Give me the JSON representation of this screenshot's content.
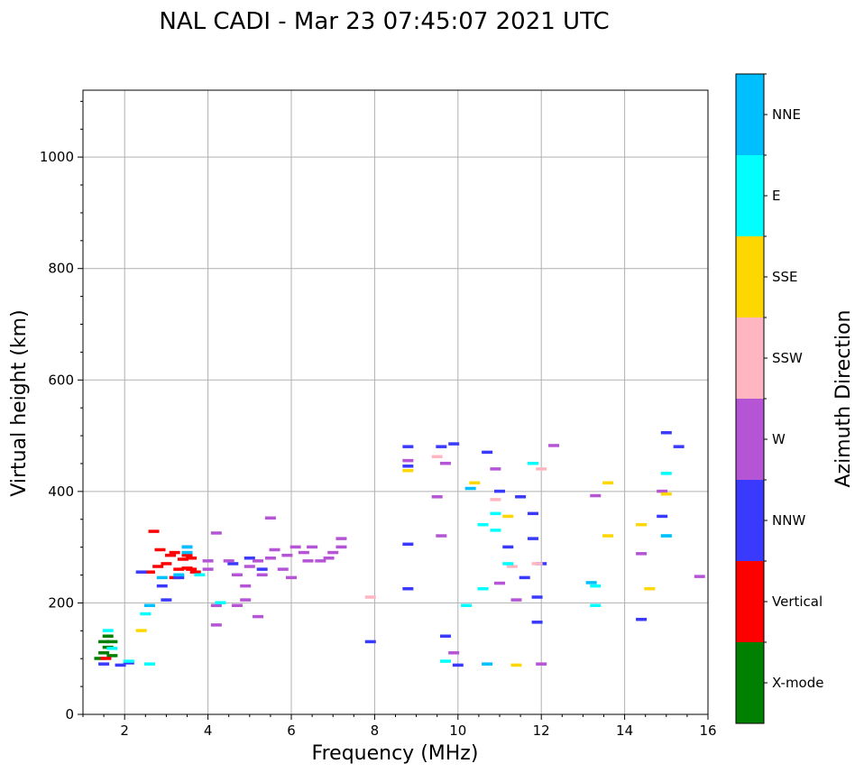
{
  "chart_data": {
    "type": "scatter",
    "title": "NAL CADI - Mar 23 07:45:07 2021 UTC",
    "xlabel": "Frequency (MHz)",
    "ylabel": "Virtual height (km)",
    "xlim": [
      1,
      16
    ],
    "ylim": [
      0,
      1120
    ],
    "xticks": [
      2,
      4,
      6,
      8,
      10,
      12,
      14,
      16
    ],
    "yticks": [
      0,
      200,
      400,
      600,
      800,
      1000
    ],
    "grid": true,
    "colorbar": {
      "label": "Azimuth Direction",
      "categories": [
        {
          "name": "X-mode",
          "color": "#008000"
        },
        {
          "name": "Vertical",
          "color": "#ff0000"
        },
        {
          "name": "NNW",
          "color": "#3a3aff"
        },
        {
          "name": "W",
          "color": "#b555d6"
        },
        {
          "name": "SSW",
          "color": "#ffb6c1"
        },
        {
          "name": "SSE",
          "color": "#ffd700"
        },
        {
          "name": "E",
          "color": "#00ffff"
        },
        {
          "name": "NNE",
          "color": "#00bfff"
        }
      ]
    },
    "series": [
      {
        "name": "X-mode",
        "points": [
          [
            1.4,
            100
          ],
          [
            1.5,
            110
          ],
          [
            1.6,
            120
          ],
          [
            1.6,
            140
          ],
          [
            1.7,
            130
          ],
          [
            1.5,
            130
          ],
          [
            1.7,
            105
          ]
        ]
      },
      {
        "name": "Vertical",
        "points": [
          [
            1.55,
            100
          ],
          [
            2.6,
            255
          ],
          [
            2.8,
            265
          ],
          [
            3.0,
            270
          ],
          [
            3.1,
            285
          ],
          [
            3.3,
            260
          ],
          [
            3.5,
            262
          ],
          [
            3.6,
            260
          ],
          [
            3.7,
            255
          ],
          [
            3.2,
            290
          ],
          [
            3.5,
            285
          ],
          [
            2.85,
            295
          ],
          [
            2.7,
            328
          ],
          [
            3.2,
            245
          ],
          [
            3.4,
            278
          ],
          [
            3.6,
            280
          ]
        ]
      },
      {
        "name": "NNW",
        "points": [
          [
            1.5,
            90
          ],
          [
            1.9,
            88
          ],
          [
            2.1,
            92
          ],
          [
            2.4,
            255
          ],
          [
            2.9,
            230
          ],
          [
            3.0,
            205
          ],
          [
            3.3,
            245
          ],
          [
            3.5,
            300
          ],
          [
            4.6,
            270
          ],
          [
            5.0,
            280
          ],
          [
            5.3,
            260
          ],
          [
            8.8,
            480
          ],
          [
            9.6,
            480
          ],
          [
            9.9,
            485
          ],
          [
            10.7,
            470
          ],
          [
            11.2,
            300
          ],
          [
            11.5,
            390
          ],
          [
            11.8,
            360
          ],
          [
            11.8,
            315
          ],
          [
            12.0,
            270
          ],
          [
            14.4,
            170
          ],
          [
            14.9,
            355
          ],
          [
            15.3,
            480
          ],
          [
            15.0,
            505
          ],
          [
            8.8,
            305
          ],
          [
            8.8,
            225
          ],
          [
            9.7,
            140
          ],
          [
            7.9,
            130
          ],
          [
            10.0,
            88
          ],
          [
            11.0,
            400
          ],
          [
            11.6,
            245
          ],
          [
            11.9,
            165
          ],
          [
            11.9,
            210
          ],
          [
            8.8,
            445
          ]
        ]
      },
      {
        "name": "W",
        "points": [
          [
            4.2,
            325
          ],
          [
            4.0,
            275
          ],
          [
            4.0,
            260
          ],
          [
            4.2,
            195
          ],
          [
            4.2,
            160
          ],
          [
            4.5,
            275
          ],
          [
            4.7,
            250
          ],
          [
            4.9,
            230
          ],
          [
            5.0,
            265
          ],
          [
            5.2,
            275
          ],
          [
            5.3,
            250
          ],
          [
            5.5,
            280
          ],
          [
            5.6,
            295
          ],
          [
            5.8,
            260
          ],
          [
            5.9,
            285
          ],
          [
            6.0,
            245
          ],
          [
            6.1,
            300
          ],
          [
            6.3,
            290
          ],
          [
            6.4,
            275
          ],
          [
            6.5,
            300
          ],
          [
            6.7,
            275
          ],
          [
            6.9,
            280
          ],
          [
            7.0,
            290
          ],
          [
            7.2,
            300
          ],
          [
            7.2,
            315
          ],
          [
            5.5,
            352
          ],
          [
            4.9,
            205
          ],
          [
            5.2,
            175
          ],
          [
            4.7,
            195
          ],
          [
            8.8,
            455
          ],
          [
            9.6,
            320
          ],
          [
            9.7,
            450
          ],
          [
            11.0,
            235
          ],
          [
            13.3,
            392
          ],
          [
            14.4,
            288
          ],
          [
            14.9,
            400
          ],
          [
            15.8,
            247
          ],
          [
            9.9,
            110
          ],
          [
            12.0,
            90
          ],
          [
            10.9,
            440
          ],
          [
            11.4,
            205
          ],
          [
            9.5,
            390
          ],
          [
            12.3,
            482
          ]
        ]
      },
      {
        "name": "SSW",
        "points": [
          [
            10.9,
            385
          ],
          [
            11.3,
            265
          ],
          [
            11.9,
            270
          ],
          [
            7.9,
            210
          ],
          [
            12.0,
            440
          ],
          [
            9.5,
            462
          ]
        ]
      },
      {
        "name": "SSE",
        "points": [
          [
            8.8,
            437
          ],
          [
            10.4,
            415
          ],
          [
            11.2,
            355
          ],
          [
            11.4,
            88
          ],
          [
            14.4,
            340
          ],
          [
            14.6,
            225
          ],
          [
            15.0,
            395
          ],
          [
            13.6,
            320
          ],
          [
            13.6,
            415
          ],
          [
            2.4,
            150
          ]
        ]
      },
      {
        "name": "E",
        "points": [
          [
            2.1,
            95
          ],
          [
            2.6,
            90
          ],
          [
            3.8,
            250
          ],
          [
            4.3,
            200
          ],
          [
            9.7,
            95
          ],
          [
            10.2,
            195
          ],
          [
            10.6,
            225
          ],
          [
            10.6,
            340
          ],
          [
            10.9,
            330
          ],
          [
            10.9,
            360
          ],
          [
            11.2,
            270
          ],
          [
            11.8,
            450
          ],
          [
            13.3,
            230
          ],
          [
            13.3,
            195
          ],
          [
            15.0,
            432
          ],
          [
            15.0,
            320
          ],
          [
            1.6,
            150
          ],
          [
            1.7,
            118
          ],
          [
            2.5,
            180
          ]
        ]
      },
      {
        "name": "NNE",
        "points": [
          [
            3.5,
            300
          ],
          [
            3.5,
            290
          ],
          [
            3.3,
            250
          ],
          [
            2.9,
            245
          ],
          [
            2.6,
            195
          ],
          [
            10.3,
            405
          ],
          [
            10.7,
            90
          ],
          [
            13.2,
            236
          ],
          [
            15.0,
            320
          ]
        ]
      }
    ]
  }
}
